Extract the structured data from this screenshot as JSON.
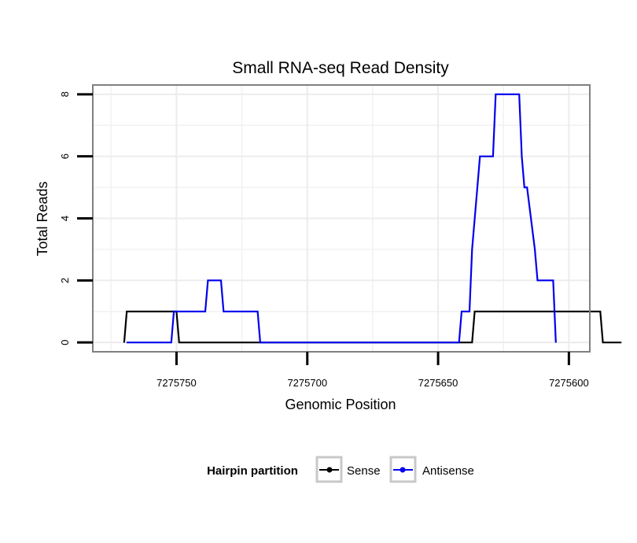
{
  "chart_data": {
    "type": "line",
    "title": "Small RNA-seq Read Density",
    "xlabel": "Genomic Position",
    "ylabel": "Total Reads",
    "xlim": [
      7275782,
      7275592
    ],
    "ylim": [
      -0.3,
      8.3
    ],
    "x_reversed": true,
    "grid": true,
    "xticks": [
      7275750,
      7275700,
      7275650,
      7275600
    ],
    "xtick_labels": [
      "7275750",
      "7275700",
      "7275650",
      "7275600"
    ],
    "yticks": [
      0,
      2,
      4,
      6,
      8
    ],
    "ytick_labels": [
      "0",
      "2",
      "4",
      "6",
      "8"
    ],
    "legend": {
      "title": "Hairpin partition",
      "position": "bottom",
      "entries": [
        "Sense",
        "Antisense"
      ]
    },
    "series": [
      {
        "name": "Sense",
        "color": "#000000",
        "x": [
          7275770,
          7275769,
          7275751,
          7275750,
          7275749,
          7275700,
          7275637,
          7275636,
          7275588,
          7275587,
          7275580
        ],
        "y": [
          0,
          1,
          1,
          1,
          0,
          0,
          0,
          1,
          1,
          0,
          0
        ]
      },
      {
        "name": "Antisense",
        "color": "#0000ee",
        "x": [
          7275769,
          7275752,
          7275751,
          7275739,
          7275738,
          7275733,
          7275732,
          7275719,
          7275718,
          7275700,
          7275642,
          7275641,
          7275638,
          7275637,
          7275635,
          7275634,
          7275629,
          7275628,
          7275619,
          7275618,
          7275617,
          7275616,
          7275613,
          7275612,
          7275606,
          7275605
        ],
        "y": [
          0,
          0,
          1,
          1,
          2,
          2,
          1,
          1,
          0,
          0,
          0,
          1,
          1,
          3,
          5,
          6,
          6,
          8,
          8,
          6,
          5,
          5,
          3,
          2,
          2,
          0
        ]
      }
    ]
  }
}
